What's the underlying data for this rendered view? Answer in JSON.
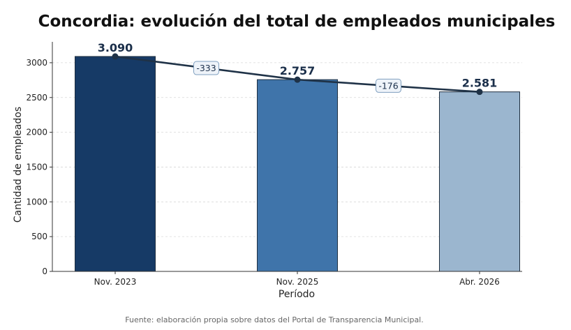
{
  "chart_data": {
    "type": "bar",
    "title": "Concordia: evolución del total de empleados municipales",
    "xlabel": "Período",
    "ylabel": "Cantidad de empleados",
    "categories": [
      "Nov. 2023",
      "Nov. 2025",
      "Abr. 2026"
    ],
    "values": [
      3090,
      2757,
      2581
    ],
    "value_labels": [
      "3.090",
      "2.757",
      "2.581"
    ],
    "bar_colors": [
      "#163a66",
      "#3f74aa",
      "#9bb6cf"
    ],
    "trend_line_color": "#1f3247",
    "differences": [
      {
        "label": "-333",
        "value": -333,
        "from": "Nov. 2023",
        "to": "Nov. 2025"
      },
      {
        "label": "-176",
        "value": -176,
        "from": "Nov. 2025",
        "to": "Abr. 2026"
      }
    ],
    "ylim": [
      0,
      3300
    ],
    "yticks": [
      0,
      500,
      1000,
      1500,
      2000,
      2500,
      3000
    ],
    "grid": "horizontal dashed",
    "source": "Fuente: elaboración propia sobre datos del Portal de Transparencia Municipal."
  }
}
